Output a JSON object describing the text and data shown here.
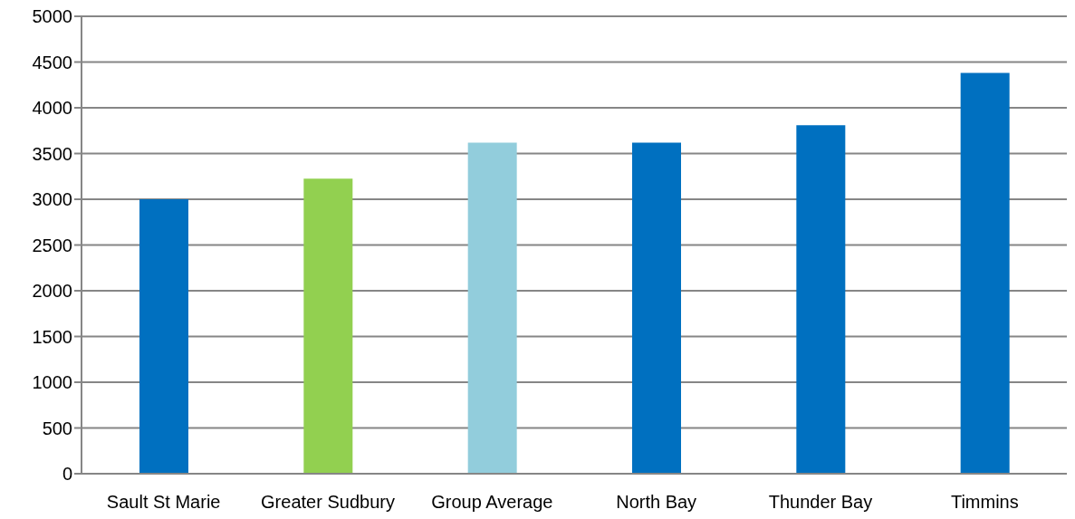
{
  "chart_data": {
    "type": "bar",
    "categories": [
      "Sault St Marie",
      "Greater Sudbury",
      "Group Average",
      "North Bay",
      "Thunder Bay",
      "Timmins"
    ],
    "values": [
      3000,
      3225,
      3620,
      3620,
      3810,
      4380
    ],
    "colors": [
      "#0070c0",
      "#92d050",
      "#92cddc",
      "#0070c0",
      "#0070c0",
      "#0070c0"
    ],
    "ylim": [
      0,
      5000
    ],
    "yticks": [
      0,
      500,
      1000,
      1500,
      2000,
      2500,
      3000,
      3500,
      4000,
      4500,
      5000
    ],
    "grid": "y",
    "legend": false
  }
}
